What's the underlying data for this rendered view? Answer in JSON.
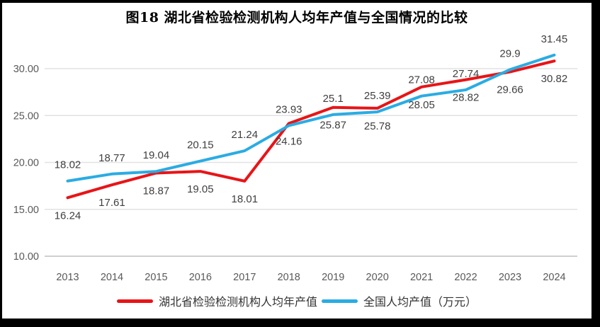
{
  "title": "图18 湖北省检验检测机构人均年产值与全国情况的比较",
  "chart_data": {
    "type": "line",
    "title": "图18 湖北省检验检测机构人均年产值与全国情况的比较",
    "categories": [
      "2013",
      "2014",
      "2015",
      "2016",
      "2017",
      "2018",
      "2019",
      "2020",
      "2021",
      "2022",
      "2023",
      "2024"
    ],
    "series": [
      {
        "name": "湖北省检验检测机构人均年产值",
        "color": "#E81417",
        "values": [
          16.24,
          17.61,
          18.87,
          19.05,
          18.01,
          24.16,
          25.87,
          25.78,
          28.05,
          28.82,
          29.66,
          30.82
        ],
        "label_position": "below"
      },
      {
        "name": "全国人均产值（万元）",
        "color": "#2AACE3",
        "values": [
          18.02,
          18.77,
          19.04,
          20.15,
          21.24,
          23.93,
          25.1,
          25.39,
          27.08,
          27.74,
          29.9,
          31.45
        ],
        "label_position": "above"
      }
    ],
    "y_ticks": [
      "10.00",
      "15.00",
      "20.00",
      "25.00",
      "30.00"
    ],
    "ylim": [
      10,
      35
    ],
    "xlabel": "",
    "ylabel": "",
    "grid": "horizontal",
    "gridline_color": "#E2E2E2",
    "axis_line_color": "#BFBFBF",
    "axis_text_color": "#595959",
    "legend_position": "bottom"
  }
}
